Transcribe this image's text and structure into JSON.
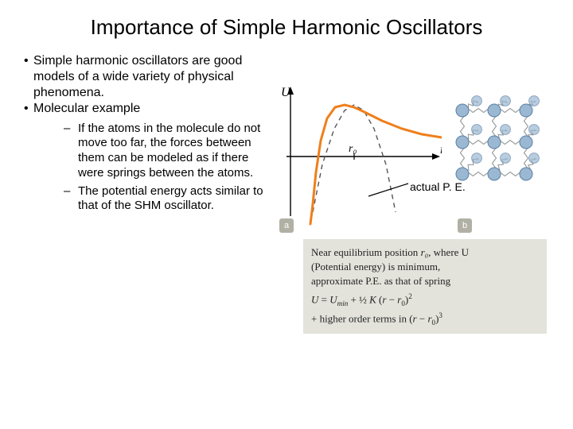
{
  "title": "Importance of Simple Harmonic Oscillators",
  "bullets": {
    "b1": "Simple harmonic oscillators are good models of a wide variety of physical phenomena.",
    "b2": "Molecular example",
    "s1": "If the atoms in the molecule do not move too far, the forces between them can be modeled as if there were springs between the atoms.",
    "s2": "The potential energy acts similar to that of the SHM oscillator."
  },
  "chart": {
    "type": "line",
    "U_label": "U",
    "r_label": "r",
    "r0_label": "r₀",
    "axis_color": "#000000",
    "actual_curve_color": "#ef7f1a",
    "approx_curve_color": "#555555",
    "approx_dash": "6,5",
    "actual_width": 3,
    "approx_width": 1.4,
    "background": "#ffffff",
    "r0_x": 80,
    "x_range": [
      0,
      200
    ],
    "y_range": [
      -60,
      90
    ],
    "actual_points": [
      [
        25,
        -85
      ],
      [
        28,
        -60
      ],
      [
        32,
        -20
      ],
      [
        38,
        20
      ],
      [
        46,
        48
      ],
      [
        56,
        62
      ],
      [
        68,
        65
      ],
      [
        80,
        62
      ],
      [
        95,
        55
      ],
      [
        115,
        45
      ],
      [
        140,
        35
      ],
      [
        165,
        28
      ],
      [
        190,
        24
      ],
      [
        200,
        23
      ]
    ],
    "approx_points": [
      [
        28,
        -70
      ],
      [
        40,
        -10
      ],
      [
        55,
        35
      ],
      [
        68,
        58
      ],
      [
        80,
        65
      ],
      [
        92,
        58
      ],
      [
        105,
        35
      ],
      [
        120,
        -10
      ],
      [
        132,
        -70
      ]
    ]
  },
  "lattice": {
    "atom_color": "#9bb8d3",
    "atom_stroke": "#5b7fa3",
    "spring_color": "#9ca0a0",
    "atom_radius": 8,
    "grid": 3
  },
  "pe_annotation": "actual P. E.",
  "badges": {
    "a": "a",
    "b": "b"
  },
  "caption": {
    "line1_pre": "Near equilibrium position ",
    "line1_r0": "r₀",
    "line1_post": ", where U",
    "line2": "(Potential energy) is minimum,",
    "line3": "approximate P.E. as that of spring",
    "eq_U": "U",
    "eq_eq": " = ",
    "eq_Umin": "U",
    "eq_min": "min",
    "eq_plus": " + ",
    "eq_half": "½",
    "eq_K": " K ",
    "eq_lp": "(",
    "eq_r": "r",
    "eq_minus": " − ",
    "eq_r0r": "r",
    "eq_0": "0",
    "eq_rp": ")",
    "eq_sq": "2",
    "line5_pre": "+ higher order terms in (",
    "line5_r": "r",
    "line5_minus": " − ",
    "line5_r0r": "r",
    "line5_0": "0",
    "line5_rp": ")",
    "line5_cube": "3"
  }
}
